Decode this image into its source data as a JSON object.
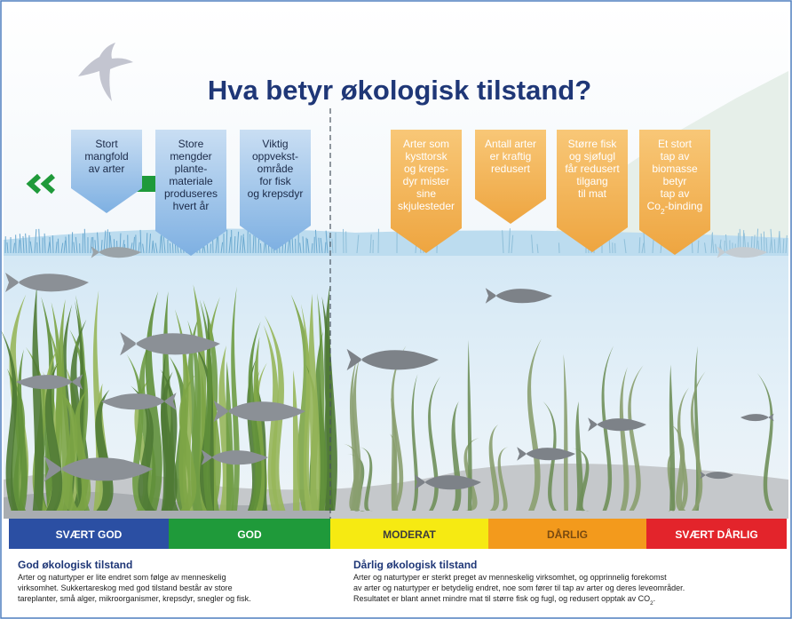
{
  "header": {
    "title": "Hva betyr økologisk tilstand?"
  },
  "callouts": [
    {
      "lines": [
        "Stort",
        "mangfold",
        "av arter"
      ]
    },
    {
      "lines": [
        "Store",
        "mengder",
        "plante-",
        "materiale",
        "produseres",
        "hvert år"
      ]
    },
    {
      "lines": [
        "Viktig",
        "oppvekst-",
        "område",
        "for fisk",
        "og krepsdyr"
      ]
    },
    {
      "lines": [
        "Arter som",
        "kysttorsk",
        "og kreps-",
        "dyr mister",
        "sine",
        "skjulesteder"
      ]
    },
    {
      "lines": [
        "Antall arter",
        "er kraftig",
        "redusert"
      ]
    },
    {
      "lines": [
        "Større fisk",
        "og sjøfugl",
        "får redusert",
        "tilgang",
        "til mat"
      ]
    },
    {
      "lines": [
        "Et stort",
        "tap av",
        "biomasse",
        "betyr",
        "tap av",
        {
          "text": "Co",
          "sub": "2",
          "tail": "-binding"
        }
      ]
    }
  ],
  "scale": [
    {
      "label": "SVÆRT GOD"
    },
    {
      "label": "GOD"
    },
    {
      "label": "MODERAT"
    },
    {
      "label": "DÅRLIG"
    },
    {
      "label": "SVÆRT DÅRLIG"
    }
  ],
  "descriptions": [
    {
      "heading": "God økologisk tilstand",
      "lines": [
        "Arter og naturtyper er lite endret som følge av menneskelig",
        "virksomhet. Sukkertareskog med god tilstand består av store",
        "tareplanter, små alger, mikroorganismer, krepsdyr, snegler og fisk."
      ]
    },
    {
      "heading": "Dårlig økologisk tilstand",
      "lines": [
        "Arter og naturtyper er sterkt preget av menneskelig virksomhet, og opprinnelig forekomst",
        "av arter og naturtyper er betydelig endret, noe som fører til tap av arter og deres leveområder.",
        {
          "text": "Resultatet er blant annet mindre mat til større fisk og fugl, og redusert opptak av CO",
          "sub": "2",
          "tail": "."
        }
      ]
    }
  ]
}
